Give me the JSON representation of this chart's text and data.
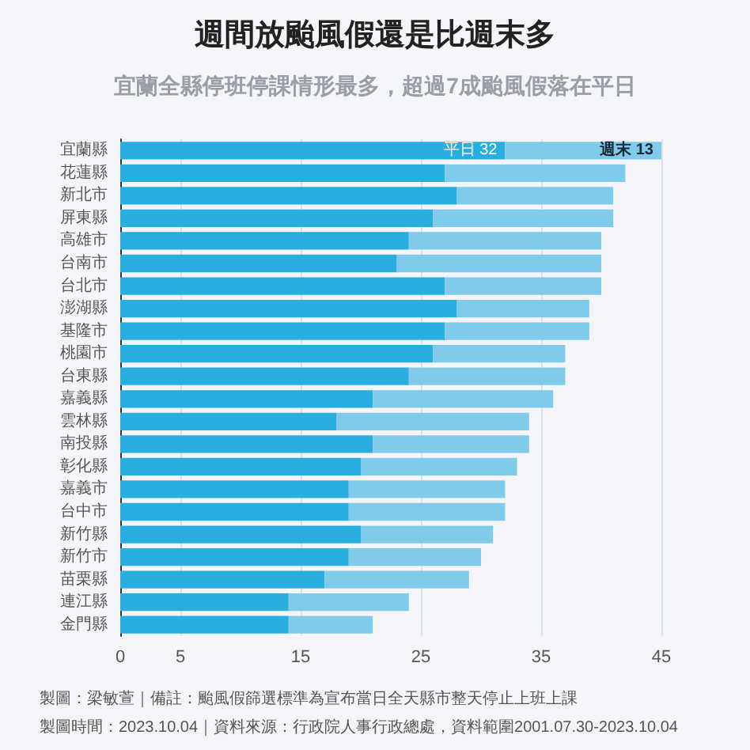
{
  "chart_data": {
    "type": "bar",
    "orientation": "horizontal",
    "stacked": true,
    "title": "週間放颱風假還是比週末多",
    "subtitle": "宜蘭全縣停班停課情形最多，超過7成颱風假落在平日",
    "categories": [
      "宜蘭縣",
      "花蓮縣",
      "新北市",
      "屏東縣",
      "高雄市",
      "台南市",
      "台北市",
      "澎湖縣",
      "基隆市",
      "桃園市",
      "台東縣",
      "嘉義縣",
      "雲林縣",
      "南投縣",
      "彰化縣",
      "嘉義市",
      "台中市",
      "新竹縣",
      "新竹市",
      "苗栗縣",
      "連江縣",
      "金門縣"
    ],
    "series": [
      {
        "color": "#29aee0",
        "values": [
          32,
          27,
          28,
          26,
          24,
          23,
          27,
          28,
          27,
          26,
          24,
          21,
          18,
          21,
          20,
          19,
          19,
          20,
          19,
          17,
          14,
          14
        ],
        "value_labels": [
          "平日 32",
          null,
          null,
          null,
          null,
          null,
          null,
          null,
          null,
          null,
          null,
          null,
          null,
          null,
          null,
          null,
          null,
          null,
          null,
          null,
          null,
          null
        ]
      },
      {
        "color": "#80cbea",
        "values": [
          13,
          15,
          13,
          15,
          16,
          17,
          13,
          11,
          12,
          11,
          13,
          15,
          16,
          13,
          13,
          13,
          13,
          11,
          11,
          12,
          10,
          7
        ],
        "value_labels": [
          "週末 13",
          null,
          null,
          null,
          null,
          null,
          null,
          null,
          null,
          null,
          null,
          null,
          null,
          null,
          null,
          null,
          null,
          null,
          null,
          null,
          null,
          null
        ]
      }
    ],
    "xlim": [
      0,
      45
    ],
    "xticks": [
      0,
      5,
      15,
      25,
      35,
      45
    ],
    "grid": "x",
    "annotations": [
      "製圖：梁敏萱｜備註：颱風假篩選標準為宣布當日全天縣市整天停止上班上課",
      "製圖時間：2023.10.04｜資料來源：行政院人事行政總處，資料範圍2001.07.30-2023.10.04"
    ]
  }
}
